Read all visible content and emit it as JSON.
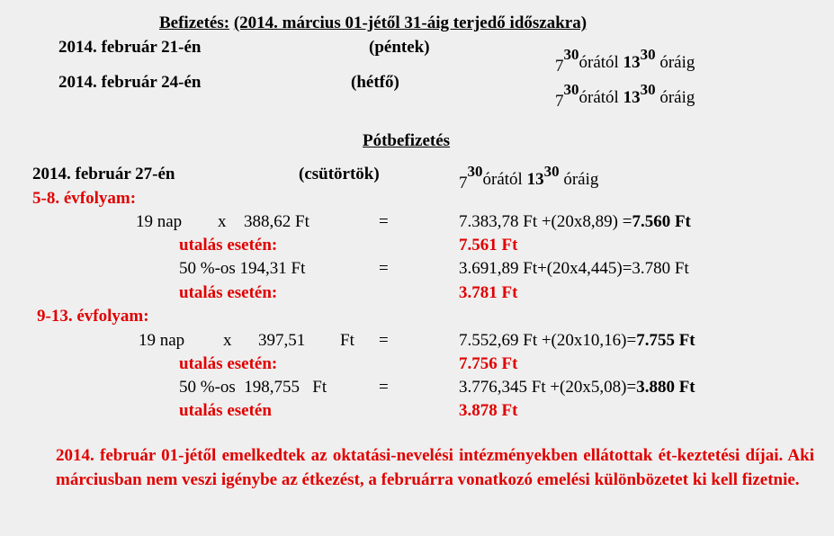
{
  "title_label": "Befizetés:",
  "title_rest": "(2014. március 01-jétől 31-áig terjedő időszakra)",
  "rows": [
    {
      "date": "2014. február 21-én",
      "day": "(péntek)"
    },
    {
      "date": "2014. február 24-én",
      "day": "(hétfő)"
    }
  ],
  "time": {
    "from_h": "7",
    "from_m": "30",
    "from_word": "órától",
    "to_h": "13",
    "to_m": "30",
    "to_word": "óráig"
  },
  "pot_title": "Pótbefizetés",
  "pot_row": {
    "date": "2014. február  27-én",
    "day": "(csütörtök)"
  },
  "g1": {
    "heading": "5-8. évfolyam:",
    "l1": {
      "a": "19 nap",
      "x": "x",
      "p": "388,62 Ft",
      "eq": "=",
      "calc": "7.383,78 Ft +(20x8,89)   =",
      "res": "7.560 Ft"
    },
    "u1": {
      "label": "utalás esetén:",
      "val": "7.561 Ft"
    },
    "l2": {
      "a": "50 %-os  194,31 Ft",
      "eq": "=",
      "calc": "3.691,89 Ft+(20x4,445)=3.780 Ft"
    },
    "u2": {
      "label": "utalás esetén:",
      "val": "3.781 Ft"
    }
  },
  "g2": {
    "heading": "9-13. évfolyam:",
    "l1": {
      "a": "19 nap",
      "x": "x",
      "p": "397,51",
      "ft": "Ft",
      "eq": "=",
      "calc": "7.552,69 Ft +(20x10,16)=",
      "res": "7.755 Ft"
    },
    "u1": {
      "label": "utalás esetén:",
      "val": "7.756 Ft"
    },
    "l2": {
      "a": "50 %-os  198,755   Ft",
      "eq": "=",
      "calc": "3.776,345 Ft +(20x5,08)=",
      "res": "3.880 Ft"
    },
    "u2": {
      "label": "utalás esetén",
      "val": "3.878 Ft"
    }
  },
  "note": "2014. február 01-jétől emelkedtek az oktatási-nevelési intézményekben ellátottak ét-keztetési díjai. Aki márciusban nem veszi igénybe az étkezést, a februárra vonatkozó emelési különbözetet ki kell fizetnie."
}
